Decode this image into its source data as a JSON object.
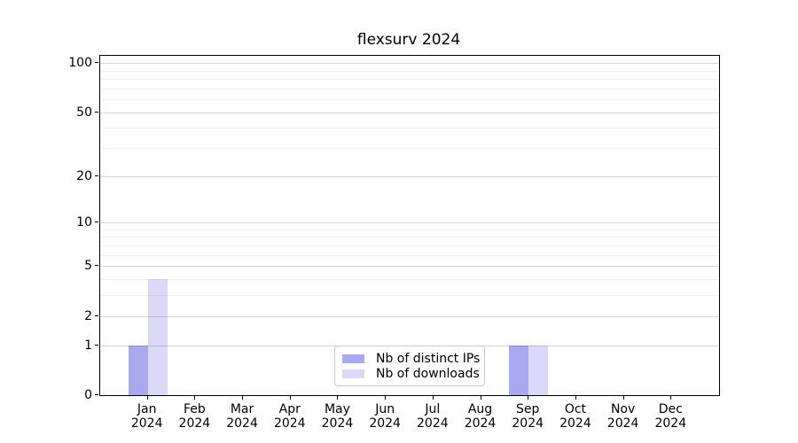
{
  "title": "flexsurv 2024",
  "colors": {
    "ips": "#a9a9ef",
    "downloads": "#dadaf8",
    "spine": "#000000",
    "grid_major": "rgba(0,0,0,0.16)",
    "grid_minor": "rgba(0,0,0,0.06)",
    "legend_border": "#c9c9c9",
    "text": "#000000"
  },
  "chart_data": {
    "type": "bar",
    "title": "flexsurv 2024",
    "xlabel": "",
    "ylabel": "",
    "y_scale": "log1p",
    "ylim": [
      0,
      110.5
    ],
    "grid": "horizontal, drawn over bars",
    "legend_position": "lower center",
    "categories": [
      "Jan 2024",
      "Feb 2024",
      "Mar 2024",
      "Apr 2024",
      "May 2024",
      "Jun 2024",
      "Jul 2024",
      "Aug 2024",
      "Sep 2024",
      "Oct 2024",
      "Nov 2024",
      "Dec 2024"
    ],
    "x_tick_months": [
      "Jan",
      "Feb",
      "Mar",
      "Apr",
      "May",
      "Jun",
      "Jul",
      "Aug",
      "Sep",
      "Oct",
      "Nov",
      "Dec"
    ],
    "x_tick_year": "2024",
    "y_major_ticks": [
      0,
      1,
      2,
      5,
      10,
      20,
      50,
      100
    ],
    "y_minor_gridlines": [
      3,
      4,
      6,
      7,
      8,
      9,
      30,
      40,
      60,
      70,
      80,
      90
    ],
    "series": [
      {
        "name": "Nb of distinct IPs",
        "color_key": "ips",
        "values": [
          1,
          0,
          0,
          0,
          0,
          0,
          0,
          0,
          1,
          0,
          0,
          0
        ]
      },
      {
        "name": "Nb of downloads",
        "color_key": "downloads",
        "values": [
          4,
          0,
          0,
          0,
          0,
          0,
          0,
          0,
          1,
          0,
          0,
          0
        ]
      }
    ]
  }
}
